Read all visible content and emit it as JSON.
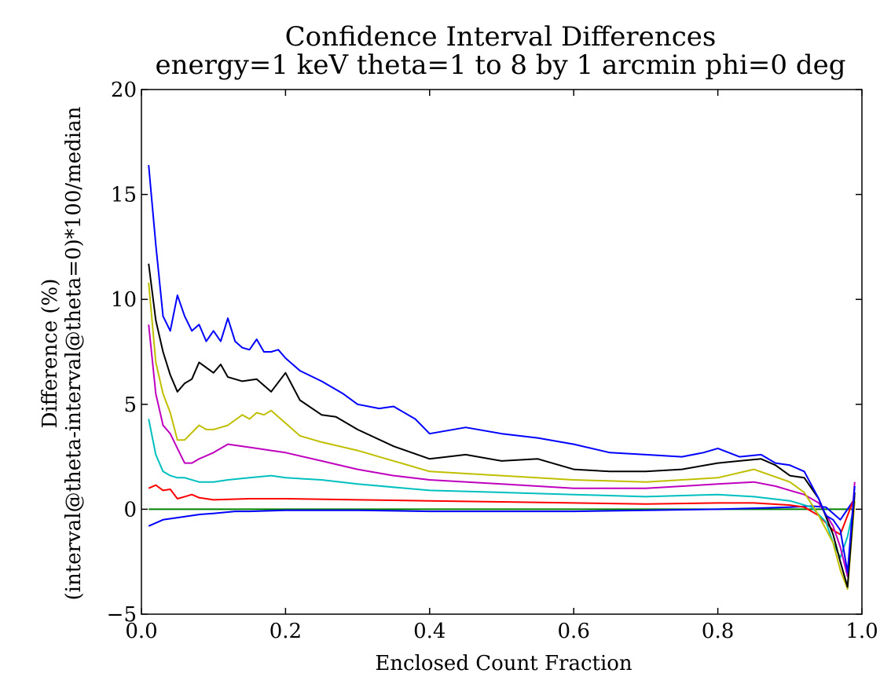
{
  "chart_data": {
    "type": "line",
    "title": "Confidence Interval Differences",
    "subtitle": "energy=1 keV theta=1 to 8 by 1 arcmin phi=0 deg",
    "xlabel": "Enclosed Count Fraction",
    "ylabel_line1": "Difference (%)",
    "ylabel_line2": "(interval@theta-interval@theta=0)*100/median",
    "xlim": [
      0.0,
      1.0
    ],
    "ylim": [
      -5,
      20
    ],
    "xticks": [
      0.0,
      0.2,
      0.4,
      0.6,
      0.8,
      1.0
    ],
    "xtick_labels": [
      "0.0",
      "0.2",
      "0.4",
      "0.6",
      "0.8",
      "1.0"
    ],
    "yticks": [
      -5,
      0,
      5,
      10,
      15,
      20
    ],
    "ytick_labels": [
      "−5",
      "0",
      "5",
      "10",
      "15",
      "20"
    ],
    "grid": false,
    "legend": "none",
    "series": [
      {
        "color": "#008000",
        "x": [
          0.01,
          0.99
        ],
        "y": [
          0,
          0
        ]
      },
      {
        "color": "#0000ff",
        "x": [
          0.01,
          0.03,
          0.05,
          0.08,
          0.1,
          0.13,
          0.15,
          0.2,
          0.3,
          0.4,
          0.5,
          0.6,
          0.7,
          0.8,
          0.85,
          0.9,
          0.93,
          0.95,
          0.97,
          0.99
        ],
        "y": [
          -0.8,
          -0.5,
          -0.4,
          -0.25,
          -0.2,
          -0.1,
          -0.1,
          -0.05,
          -0.05,
          -0.1,
          -0.1,
          -0.1,
          -0.05,
          0,
          0.05,
          0.1,
          0.15,
          0.1,
          -0.5,
          0.5
        ]
      },
      {
        "color": "#ff0000",
        "x": [
          0.01,
          0.02,
          0.03,
          0.04,
          0.05,
          0.06,
          0.07,
          0.08,
          0.1,
          0.15,
          0.2,
          0.3,
          0.4,
          0.5,
          0.6,
          0.7,
          0.8,
          0.85,
          0.9,
          0.92,
          0.94,
          0.96,
          0.97,
          0.98,
          0.99
        ],
        "y": [
          1.0,
          1.15,
          0.9,
          0.95,
          0.5,
          0.6,
          0.7,
          0.55,
          0.45,
          0.5,
          0.5,
          0.45,
          0.4,
          0.35,
          0.3,
          0.25,
          0.3,
          0.3,
          0.2,
          0.1,
          -0.3,
          -1.0,
          -1.2,
          -0.3,
          0.6
        ]
      },
      {
        "color": "#00bfbf",
        "x": [
          0.01,
          0.02,
          0.03,
          0.04,
          0.05,
          0.06,
          0.08,
          0.1,
          0.12,
          0.15,
          0.18,
          0.2,
          0.25,
          0.3,
          0.4,
          0.5,
          0.6,
          0.7,
          0.8,
          0.85,
          0.9,
          0.93,
          0.95,
          0.96,
          0.97,
          0.98,
          0.99
        ],
        "y": [
          4.3,
          2.6,
          1.8,
          1.6,
          1.5,
          1.5,
          1.3,
          1.3,
          1.4,
          1.5,
          1.6,
          1.5,
          1.4,
          1.2,
          0.9,
          0.8,
          0.7,
          0.6,
          0.7,
          0.6,
          0.4,
          0.1,
          -0.6,
          -1.6,
          -2.3,
          -1.3,
          0.3
        ]
      },
      {
        "color": "#bf00bf",
        "x": [
          0.01,
          0.02,
          0.03,
          0.04,
          0.05,
          0.06,
          0.07,
          0.08,
          0.1,
          0.12,
          0.14,
          0.16,
          0.18,
          0.2,
          0.25,
          0.3,
          0.35,
          0.4,
          0.5,
          0.6,
          0.65,
          0.7,
          0.8,
          0.85,
          0.88,
          0.9,
          0.92,
          0.94,
          0.96,
          0.97,
          0.98,
          0.99
        ],
        "y": [
          8.8,
          5.5,
          4.0,
          3.6,
          2.9,
          2.2,
          2.2,
          2.4,
          2.7,
          3.1,
          3.0,
          2.9,
          2.8,
          2.7,
          2.3,
          1.9,
          1.6,
          1.4,
          1.2,
          1.0,
          1.0,
          1.0,
          1.2,
          1.3,
          1.1,
          0.9,
          0.7,
          0.3,
          -0.8,
          -1.8,
          -3.2,
          1.3
        ]
      },
      {
        "color": "#bfbf00",
        "x": [
          0.01,
          0.02,
          0.03,
          0.04,
          0.05,
          0.06,
          0.08,
          0.09,
          0.1,
          0.12,
          0.14,
          0.15,
          0.16,
          0.17,
          0.18,
          0.2,
          0.22,
          0.25,
          0.3,
          0.35,
          0.4,
          0.5,
          0.6,
          0.7,
          0.75,
          0.8,
          0.85,
          0.9,
          0.92,
          0.94,
          0.96,
          0.97,
          0.98,
          0.99
        ],
        "y": [
          10.8,
          7.0,
          5.5,
          4.6,
          3.3,
          3.3,
          4.0,
          3.8,
          3.8,
          4.0,
          4.5,
          4.3,
          4.6,
          4.5,
          4.7,
          4.1,
          3.5,
          3.2,
          2.8,
          2.3,
          1.8,
          1.6,
          1.4,
          1.3,
          1.4,
          1.5,
          1.9,
          1.3,
          0.8,
          -0.3,
          -1.6,
          -2.9,
          -3.8,
          0.4
        ]
      },
      {
        "color": "#000000",
        "x": [
          0.01,
          0.02,
          0.03,
          0.04,
          0.05,
          0.06,
          0.07,
          0.08,
          0.1,
          0.11,
          0.12,
          0.14,
          0.16,
          0.18,
          0.2,
          0.22,
          0.25,
          0.27,
          0.3,
          0.35,
          0.4,
          0.45,
          0.5,
          0.55,
          0.6,
          0.65,
          0.7,
          0.75,
          0.8,
          0.83,
          0.86,
          0.88,
          0.9,
          0.92,
          0.94,
          0.96,
          0.97,
          0.98,
          0.99
        ],
        "y": [
          11.7,
          9.0,
          7.5,
          6.4,
          5.6,
          6.0,
          6.2,
          7.0,
          6.5,
          6.9,
          6.3,
          6.1,
          6.2,
          5.6,
          6.5,
          5.2,
          4.5,
          4.4,
          3.8,
          3.0,
          2.4,
          2.6,
          2.3,
          2.4,
          1.9,
          1.8,
          1.8,
          1.9,
          2.2,
          2.3,
          2.4,
          2.1,
          1.6,
          1.5,
          0.5,
          -1.2,
          -2.5,
          -3.7,
          0.8
        ]
      },
      {
        "color": "#0000ff",
        "x": [
          0.01,
          0.02,
          0.03,
          0.04,
          0.05,
          0.06,
          0.07,
          0.08,
          0.09,
          0.1,
          0.11,
          0.12,
          0.13,
          0.14,
          0.15,
          0.16,
          0.17,
          0.18,
          0.19,
          0.2,
          0.22,
          0.25,
          0.28,
          0.3,
          0.33,
          0.35,
          0.38,
          0.4,
          0.45,
          0.5,
          0.55,
          0.6,
          0.65,
          0.7,
          0.75,
          0.78,
          0.8,
          0.83,
          0.86,
          0.88,
          0.9,
          0.92,
          0.94,
          0.95,
          0.96,
          0.97,
          0.98,
          0.99
        ],
        "y": [
          16.4,
          12.6,
          9.2,
          8.5,
          10.2,
          9.2,
          8.5,
          8.8,
          8.0,
          8.5,
          8.0,
          9.1,
          8.0,
          7.7,
          7.6,
          8.1,
          7.5,
          7.5,
          7.6,
          7.2,
          6.6,
          6.1,
          5.5,
          5.0,
          4.8,
          4.9,
          4.3,
          3.6,
          3.9,
          3.6,
          3.4,
          3.1,
          2.7,
          2.6,
          2.5,
          2.7,
          2.9,
          2.5,
          2.6,
          2.2,
          2.1,
          1.8,
          0.5,
          -0.3,
          -0.5,
          -1.0,
          -3.0,
          1.1
        ]
      }
    ]
  }
}
